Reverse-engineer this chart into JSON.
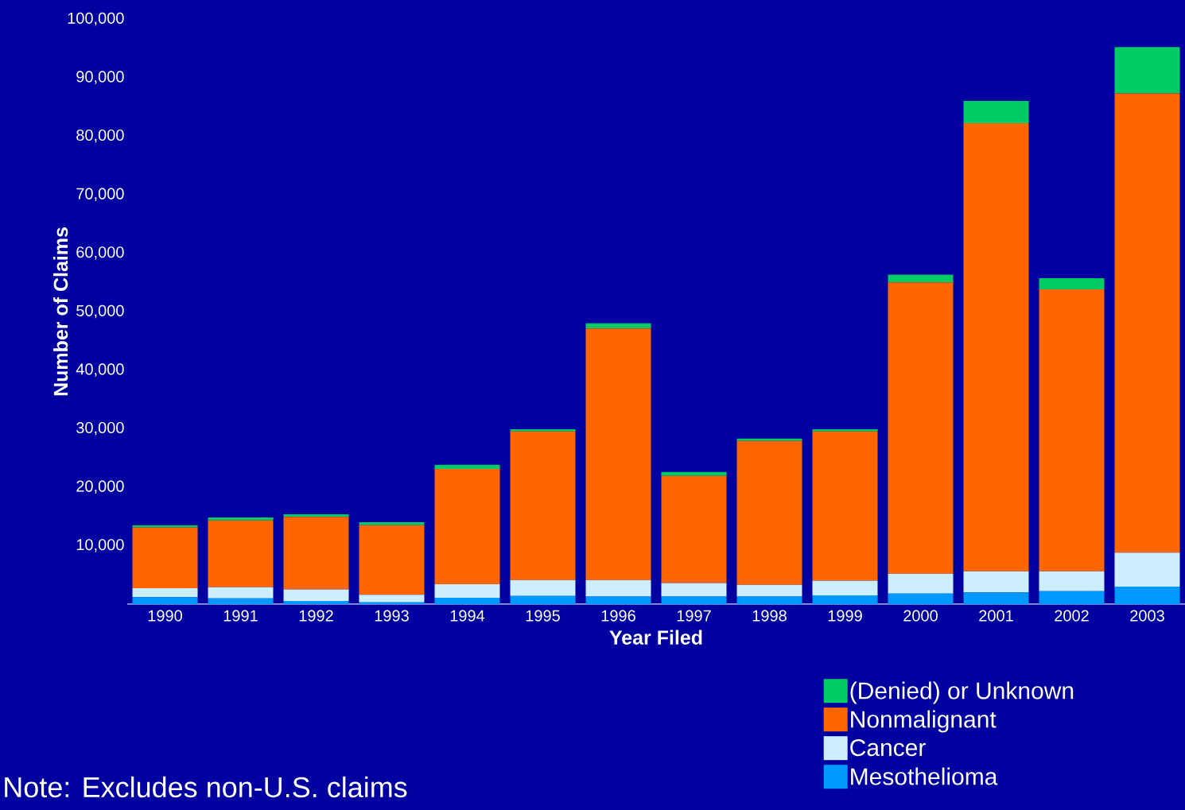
{
  "chart_data": {
    "type": "bar",
    "stacked": true,
    "xlabel": "Year Filed",
    "ylabel": "Number of Claims",
    "categories": [
      "1990",
      "1991",
      "1992",
      "1993",
      "1994",
      "1995",
      "1996",
      "1997",
      "1998",
      "1999",
      "2000",
      "2001",
      "2002",
      "2003"
    ],
    "series": [
      {
        "name": "Mesothelioma",
        "color": "#0099ff",
        "values": [
          1200,
          1000,
          550,
          300,
          1100,
          1400,
          1300,
          1300,
          1300,
          1500,
          1800,
          2000,
          2200,
          3000
        ]
      },
      {
        "name": "Cancer",
        "color": "#cceeff",
        "values": [
          1500,
          1900,
          1950,
          1300,
          2300,
          2700,
          2800,
          2300,
          2000,
          2500,
          3400,
          3600,
          3400,
          5800
        ]
      },
      {
        "name": "Nonmalignant",
        "color": "#ff6600",
        "values": [
          10400,
          11400,
          12400,
          11900,
          19700,
          25400,
          43000,
          18300,
          24600,
          25500,
          49800,
          76600,
          48200,
          78500
        ]
      },
      {
        "name": "(Denied) or Unknown",
        "color": "#00cc66",
        "values": [
          400,
          500,
          450,
          500,
          700,
          400,
          900,
          700,
          400,
          400,
          1300,
          3800,
          1900,
          7900
        ]
      }
    ],
    "ylim": [
      0,
      100000
    ],
    "yticks": [
      {
        "value": 10000,
        "label": "10,000"
      },
      {
        "value": 20000,
        "label": "20,000"
      },
      {
        "value": 30000,
        "label": "30,000"
      },
      {
        "value": 40000,
        "label": "40,000"
      },
      {
        "value": 50000,
        "label": "50,000"
      },
      {
        "value": 60000,
        "label": "60,000"
      },
      {
        "value": 70000,
        "label": "70,000"
      },
      {
        "value": 80000,
        "label": "80,000"
      },
      {
        "value": 90000,
        "label": "90,000"
      },
      {
        "value": 100000,
        "label": "100,000"
      }
    ],
    "legend": "bottom right",
    "annotations": [
      "Note: Excludes non-U.S. claims"
    ]
  }
}
